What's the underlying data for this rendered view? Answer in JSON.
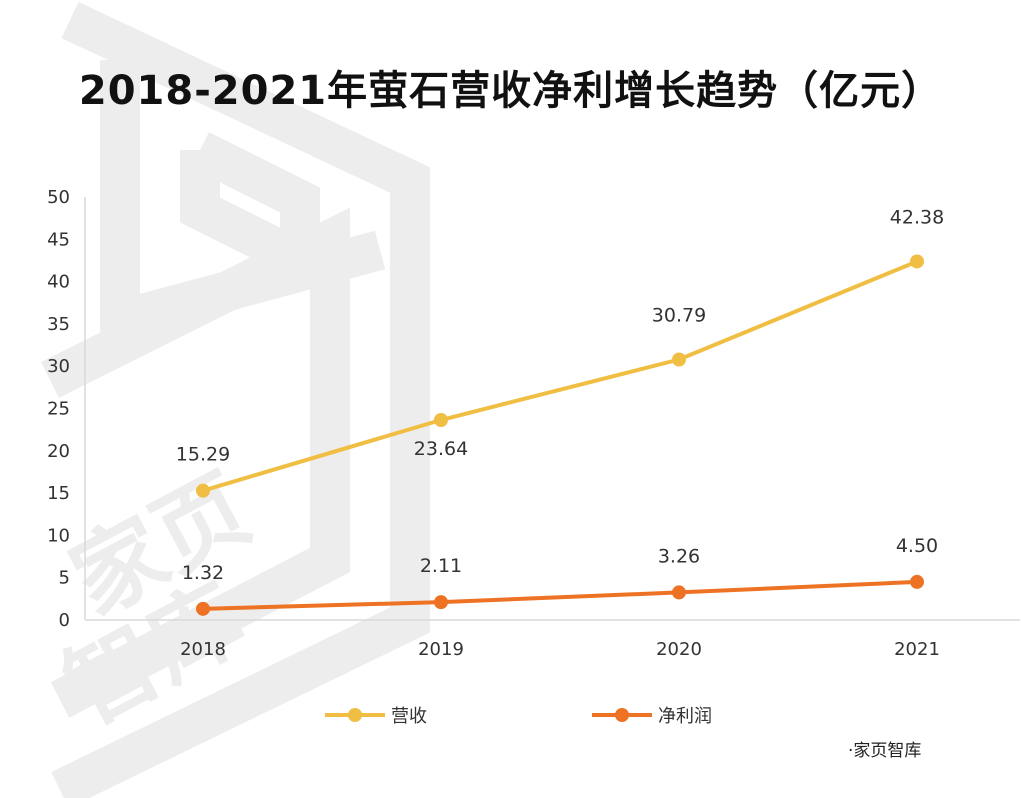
{
  "chart_data": {
    "type": "line",
    "title": "2018-2021年萤石营收净利增长趋势（亿元）",
    "categories": [
      "2018",
      "2019",
      "2020",
      "2021"
    ],
    "series": [
      {
        "name": "营收",
        "values": [
          15.29,
          23.64,
          30.79,
          42.38
        ],
        "labels": [
          "15.29",
          "23.64",
          "30.79",
          "42.38"
        ],
        "color": "#F0BE42"
      },
      {
        "name": "净利润",
        "values": [
          1.32,
          2.11,
          3.26,
          4.5
        ],
        "labels": [
          "1.32",
          "2.11",
          "3.26",
          "4.50"
        ],
        "color": "#EE7223"
      }
    ],
    "yticks": [
      "0",
      "5",
      "10",
      "15",
      "20",
      "25",
      "30",
      "35",
      "40",
      "45",
      "50"
    ],
    "ylim": [
      0,
      50
    ],
    "xlabel": "",
    "ylabel": "",
    "grid": false,
    "legend_position": "bottom"
  },
  "watermark": {
    "text": "家页智库",
    "footer_text": "·家页智库",
    "color": "#EDEDED"
  }
}
